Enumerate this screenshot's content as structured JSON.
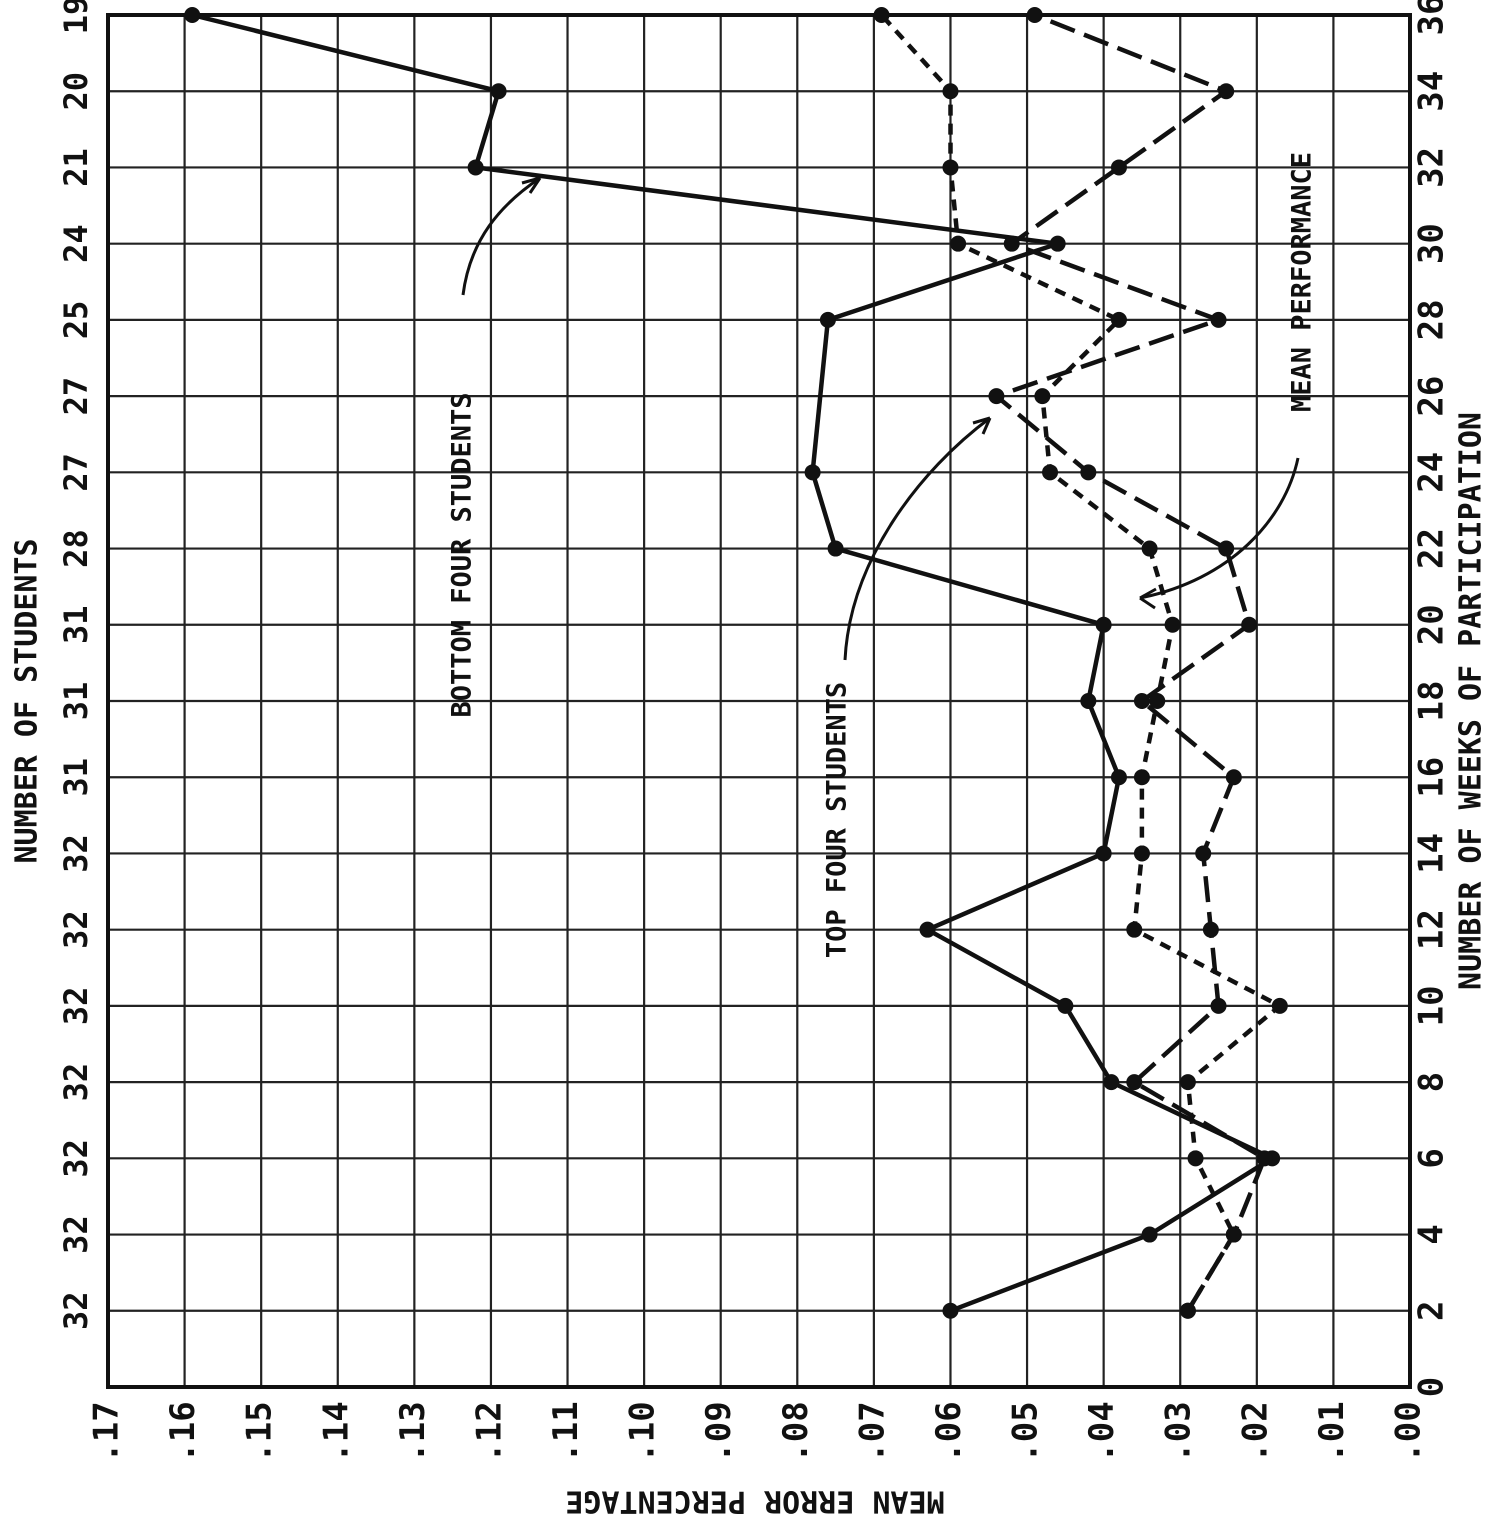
{
  "chart_data": {
    "type": "line",
    "xlabel": "MEAN ERROR PERCENTAGE",
    "x_ticks": [
      ".00",
      ".01",
      ".02",
      ".03",
      ".04",
      ".05",
      ".06",
      ".07",
      ".08",
      ".09",
      ".10",
      ".11",
      ".12",
      ".13",
      ".14",
      ".15",
      ".16",
      ".17"
    ],
    "xlim": [
      0,
      0.17
    ],
    "ylabel": "NUMBER OF WEEKS OF PARTICIPATION",
    "y_ticks": [
      "0",
      "2",
      "4",
      "6",
      "8",
      "10",
      "12",
      "14",
      "16",
      "18",
      "20",
      "22",
      "24",
      "26",
      "28",
      "30",
      "32",
      "34",
      "36"
    ],
    "ylim": [
      0,
      36
    ],
    "secondary_axis": {
      "label": "NUMBER OF STUDENTS",
      "weeks": [
        2,
        4,
        6,
        8,
        10,
        12,
        14,
        16,
        18,
        20,
        22,
        24,
        26,
        28,
        30,
        32,
        34,
        36
      ],
      "values": [
        "32",
        "32",
        "32",
        "32",
        "32",
        "32",
        "32",
        "31",
        "31",
        "31",
        "28",
        "27",
        "27",
        "25",
        "24",
        "21",
        "20",
        "19"
      ]
    },
    "grid": true,
    "series": [
      {
        "name": "BOTTOM FOUR STUDENTS",
        "style": "solid",
        "points": [
          [
            0.06,
            2
          ],
          [
            0.034,
            4
          ],
          [
            0.018,
            6
          ],
          [
            0.039,
            8
          ],
          [
            0.045,
            10
          ],
          [
            0.063,
            12
          ],
          [
            0.04,
            14
          ],
          [
            0.038,
            16
          ],
          [
            0.042,
            18
          ],
          [
            0.04,
            20
          ],
          [
            0.075,
            22
          ],
          [
            0.078,
            24
          ],
          [
            0.076,
            28
          ],
          [
            0.046,
            30
          ],
          [
            0.122,
            32
          ],
          [
            0.119,
            34
          ],
          [
            0.159,
            36
          ]
        ]
      },
      {
        "name": "TOP FOUR STUDENTS",
        "style": "long-dash",
        "points": [
          [
            0.029,
            2
          ],
          [
            0.023,
            4
          ],
          [
            0.019,
            6
          ],
          [
            0.036,
            8
          ],
          [
            0.025,
            10
          ],
          [
            0.026,
            12
          ],
          [
            0.027,
            14
          ],
          [
            0.023,
            16
          ],
          [
            0.035,
            18
          ],
          [
            0.021,
            20
          ],
          [
            0.024,
            22
          ],
          [
            0.042,
            24
          ],
          [
            0.054,
            26
          ],
          [
            0.025,
            28
          ],
          [
            0.052,
            30
          ],
          [
            0.038,
            32
          ],
          [
            0.024,
            34
          ],
          [
            0.049,
            36
          ]
        ]
      },
      {
        "name": "MEAN PERFORMANCE",
        "style": "short-dash",
        "points": [
          [
            0.029,
            2
          ],
          [
            0.023,
            4
          ],
          [
            0.028,
            6
          ],
          [
            0.029,
            8
          ],
          [
            0.017,
            10
          ],
          [
            0.036,
            12
          ],
          [
            0.035,
            14
          ],
          [
            0.035,
            16
          ],
          [
            0.033,
            18
          ],
          [
            0.031,
            20
          ],
          [
            0.034,
            22
          ],
          [
            0.047,
            24
          ],
          [
            0.048,
            26
          ],
          [
            0.038,
            28
          ],
          [
            0.059,
            30
          ],
          [
            0.06,
            32
          ],
          [
            0.06,
            34
          ],
          [
            0.069,
            36
          ]
        ]
      }
    ],
    "annotations": [
      {
        "text": "BOTTOM FOUR STUDENTS",
        "target_series": 0
      },
      {
        "text": "TOP FOUR STUDENTS",
        "target_series": 1
      },
      {
        "text": "MEAN PERFORMANCE",
        "target_series": 2
      }
    ]
  }
}
